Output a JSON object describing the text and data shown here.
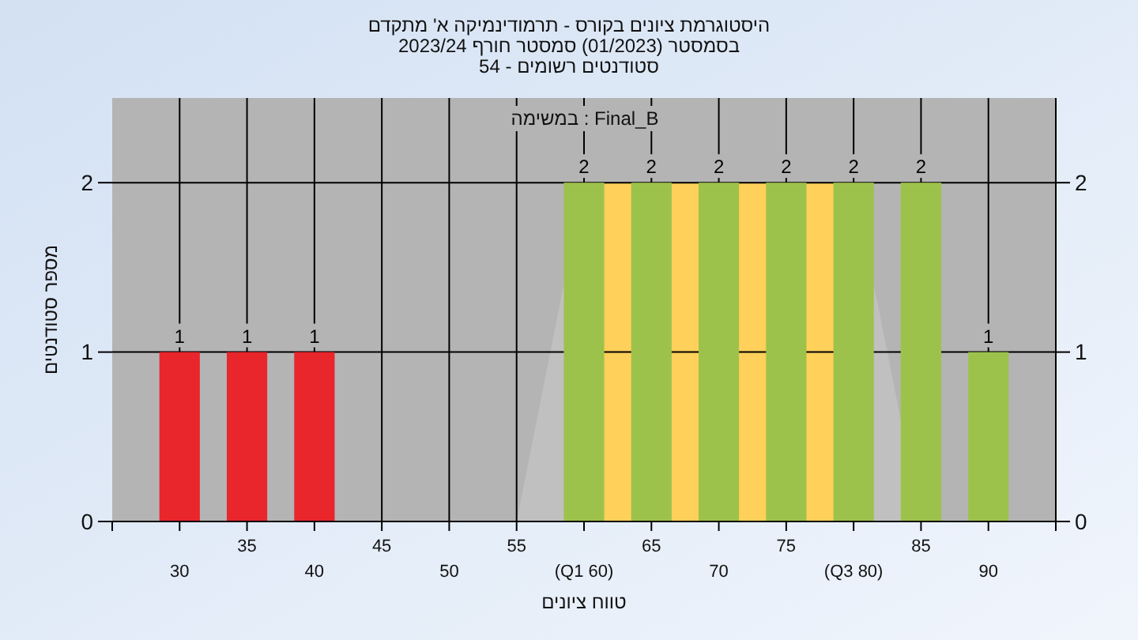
{
  "chart_data": {
    "type": "bar",
    "title": "היסטוגרמת ציונים בקורס - תרמודינמיקה א' מתקדם",
    "subtitle": "בסמסטר (01/2023) סמסטר חורף 2023/24\nסטודנטים רשומים - 54",
    "xlabel": "טווח ציונים",
    "ylabel": "מספר סטודנטים",
    "annotations": [
      "במשימה : Final_B"
    ],
    "categories": [
      "30",
      "35",
      "40",
      "45",
      "50",
      "55",
      "(Q1 60)",
      "65",
      "70",
      "75",
      "(Q3 80)",
      "85",
      "90"
    ],
    "series": [
      {
        "type": "area",
        "color": "#c0c0c0",
        "values": [
          null,
          null,
          null,
          null,
          null,
          0,
          2,
          null,
          null,
          null,
          2,
          0,
          null
        ]
      },
      {
        "type": "area",
        "color": "#ffd05a",
        "values": [
          null,
          null,
          null,
          null,
          null,
          null,
          2,
          2,
          2,
          2,
          2,
          null,
          null
        ]
      },
      {
        "colors": [
          "#e8262c",
          "#e8262c",
          "#e8262c",
          null,
          null,
          null,
          "#9dc24b",
          "#9dc24b",
          "#9dc24b",
          "#9dc24b",
          "#9dc24b",
          "#9dc24b",
          "#9dc24b"
        ],
        "values": [
          1,
          1,
          1,
          0,
          0,
          0,
          2,
          2,
          2,
          2,
          2,
          2,
          1
        ],
        "value_labels": [
          "1",
          "1",
          "1",
          null,
          null,
          null,
          "2",
          "2",
          "2",
          "2",
          "2",
          "2",
          "1"
        ]
      }
    ],
    "ylim": [
      0,
      2.5
    ],
    "yticks": [
      0,
      1,
      2
    ],
    "y2lim": [
      0,
      2.5
    ],
    "y2ticks": [
      0,
      1,
      2
    ],
    "grid": true
  }
}
